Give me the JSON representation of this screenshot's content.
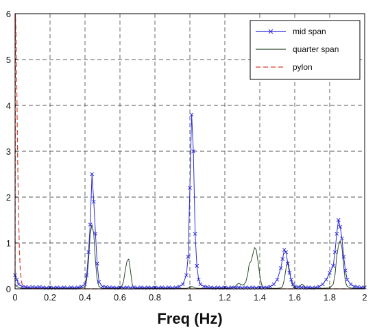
{
  "chart_data": {
    "type": "line",
    "title": "",
    "xlabel": "Freq (Hz)",
    "ylabel": "",
    "xlim": [
      0,
      2
    ],
    "ylim": [
      0,
      6
    ],
    "xticks": [
      "0",
      "0.2",
      "0.4",
      "0.6",
      "0.8",
      "1",
      "1.2",
      "1.4",
      "1.6",
      "1.8",
      "2"
    ],
    "xtick_values": [
      0,
      0.2,
      0.4,
      0.6,
      0.8,
      1.0,
      1.2,
      1.4,
      1.6,
      1.8,
      2.0
    ],
    "yticks": [
      "0",
      "1",
      "2",
      "3",
      "4",
      "5",
      "6"
    ],
    "ytick_values": [
      0,
      1,
      2,
      3,
      4,
      5,
      6
    ],
    "grid": true,
    "legend_position": "top-right",
    "series": [
      {
        "name": "mid span",
        "color": "#2b2bd6",
        "style": "solid",
        "marker": "x",
        "x": [
          0,
          0.01,
          0.02,
          0.04,
          0.06,
          0.08,
          0.1,
          0.12,
          0.14,
          0.16,
          0.18,
          0.2,
          0.22,
          0.24,
          0.26,
          0.28,
          0.3,
          0.32,
          0.34,
          0.36,
          0.38,
          0.4,
          0.41,
          0.42,
          0.43,
          0.44,
          0.45,
          0.46,
          0.47,
          0.48,
          0.5,
          0.52,
          0.54,
          0.56,
          0.58,
          0.6,
          0.62,
          0.64,
          0.66,
          0.68,
          0.7,
          0.72,
          0.74,
          0.76,
          0.78,
          0.8,
          0.82,
          0.84,
          0.86,
          0.88,
          0.9,
          0.92,
          0.94,
          0.96,
          0.98,
          0.99,
          1.0,
          1.01,
          1.02,
          1.03,
          1.04,
          1.05,
          1.06,
          1.08,
          1.1,
          1.12,
          1.14,
          1.16,
          1.18,
          1.2,
          1.22,
          1.24,
          1.26,
          1.28,
          1.3,
          1.32,
          1.34,
          1.36,
          1.38,
          1.4,
          1.42,
          1.44,
          1.46,
          1.48,
          1.5,
          1.52,
          1.53,
          1.54,
          1.55,
          1.56,
          1.57,
          1.58,
          1.59,
          1.6,
          1.62,
          1.64,
          1.66,
          1.68,
          1.7,
          1.72,
          1.74,
          1.76,
          1.78,
          1.8,
          1.82,
          1.83,
          1.84,
          1.85,
          1.86,
          1.87,
          1.88,
          1.89,
          1.9,
          1.92,
          1.94,
          1.96,
          1.98,
          2.0
        ],
        "y": [
          0.3,
          0.2,
          0.1,
          0.05,
          0.04,
          0.03,
          0.04,
          0.03,
          0.04,
          0.03,
          0.02,
          0.03,
          0.02,
          0.03,
          0.02,
          0.03,
          0.02,
          0.03,
          0.02,
          0.03,
          0.05,
          0.1,
          0.3,
          0.8,
          1.4,
          2.5,
          1.9,
          1.2,
          0.55,
          0.15,
          0.05,
          0.04,
          0.03,
          0.03,
          0.02,
          0.03,
          0.02,
          0.03,
          0.02,
          0.03,
          0.02,
          0.03,
          0.02,
          0.03,
          0.02,
          0.03,
          0.02,
          0.03,
          0.02,
          0.03,
          0.02,
          0.03,
          0.05,
          0.1,
          0.3,
          0.7,
          2.2,
          3.8,
          3.0,
          1.2,
          0.5,
          0.2,
          0.1,
          0.05,
          0.04,
          0.03,
          0.02,
          0.03,
          0.02,
          0.03,
          0.02,
          0.03,
          0.02,
          0.03,
          0.02,
          0.03,
          0.02,
          0.03,
          0.02,
          0.03,
          0.02,
          0.03,
          0.05,
          0.1,
          0.2,
          0.45,
          0.65,
          0.85,
          0.8,
          0.55,
          0.35,
          0.2,
          0.1,
          0.05,
          0.04,
          0.03,
          0.02,
          0.03,
          0.02,
          0.03,
          0.05,
          0.1,
          0.2,
          0.35,
          0.5,
          0.8,
          1.2,
          1.5,
          1.35,
          1.1,
          0.7,
          0.4,
          0.2,
          0.1,
          0.05,
          0.04,
          0.03,
          0.03
        ]
      },
      {
        "name": "quarter span",
        "color": "#2a4a2a",
        "style": "solid",
        "marker": "none",
        "x": [
          0,
          0.01,
          0.02,
          0.03,
          0.05,
          0.1,
          0.2,
          0.3,
          0.38,
          0.4,
          0.41,
          0.42,
          0.43,
          0.44,
          0.45,
          0.46,
          0.47,
          0.48,
          0.5,
          0.55,
          0.6,
          0.61,
          0.62,
          0.63,
          0.64,
          0.65,
          0.66,
          0.67,
          0.68,
          0.7,
          0.8,
          0.9,
          0.98,
          1.0,
          1.01,
          1.02,
          1.03,
          1.05,
          1.1,
          1.2,
          1.24,
          1.26,
          1.27,
          1.28,
          1.29,
          1.3,
          1.31,
          1.32,
          1.33,
          1.34,
          1.35,
          1.36,
          1.37,
          1.38,
          1.39,
          1.4,
          1.41,
          1.42,
          1.44,
          1.46,
          1.5,
          1.52,
          1.53,
          1.54,
          1.55,
          1.56,
          1.57,
          1.58,
          1.59,
          1.6,
          1.61,
          1.62,
          1.63,
          1.64,
          1.65,
          1.66,
          1.67,
          1.68,
          1.7,
          1.75,
          1.8,
          1.82,
          1.83,
          1.84,
          1.85,
          1.86,
          1.87,
          1.88,
          1.89,
          1.9,
          1.92,
          1.95,
          2.0
        ],
        "y": [
          0.1,
          0.05,
          0.03,
          0.02,
          0.01,
          0.01,
          0.01,
          0.01,
          0.02,
          0.05,
          0.2,
          0.6,
          1.2,
          1.4,
          1.2,
          0.6,
          0.2,
          0.05,
          0.01,
          0.01,
          0.01,
          0.05,
          0.15,
          0.4,
          0.6,
          0.65,
          0.4,
          0.1,
          0.02,
          0.01,
          0.01,
          0.01,
          0.01,
          0.03,
          0.05,
          0.04,
          0.02,
          0.01,
          0.01,
          0.01,
          0.02,
          0.05,
          0.1,
          0.12,
          0.1,
          0.08,
          0.1,
          0.15,
          0.3,
          0.55,
          0.6,
          0.75,
          0.9,
          0.85,
          0.6,
          0.3,
          0.1,
          0.04,
          0.02,
          0.01,
          0.01,
          0.02,
          0.05,
          0.2,
          0.45,
          0.6,
          0.4,
          0.15,
          0.05,
          0.02,
          0.01,
          0.03,
          0.06,
          0.1,
          0.08,
          0.04,
          0.02,
          0.01,
          0.01,
          0.01,
          0.02,
          0.1,
          0.3,
          0.7,
          0.95,
          1.05,
          0.9,
          0.5,
          0.15,
          0.05,
          0.02,
          0.01,
          0.01
        ]
      },
      {
        "name": "pylon",
        "color": "#e03b2b",
        "style": "dashed",
        "marker": "none",
        "x": [
          0,
          0.002,
          0.005,
          0.01,
          0.015,
          0.02,
          0.025,
          0.03,
          0.035,
          0.04,
          0.05,
          0.07,
          0.1,
          0.2,
          0.5,
          1.0,
          1.5,
          2.0
        ],
        "y": [
          0,
          6.0,
          5.6,
          4.3,
          2.8,
          1.6,
          0.8,
          0.4,
          0.2,
          0.1,
          0.05,
          0.02,
          0.01,
          0.0,
          0.0,
          0.0,
          0.0,
          0.0
        ]
      }
    ]
  }
}
